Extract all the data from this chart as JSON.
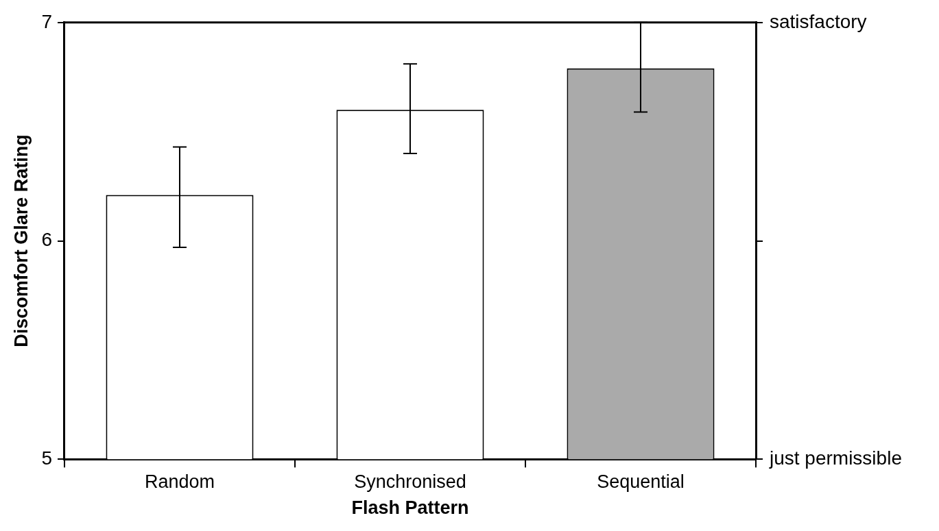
{
  "chart_data": {
    "type": "bar",
    "xlabel": "Flash Pattern",
    "ylabel": "Discomfort Glare Rating",
    "categories": [
      "Random",
      "Synchronised",
      "Sequential"
    ],
    "values": [
      6.21,
      6.6,
      6.79
    ],
    "colors": [
      "#ffffff",
      "#ffffff",
      "#aaaaaa"
    ],
    "errors": [
      [
        5.97,
        6.43
      ],
      [
        6.4,
        6.81
      ],
      [
        6.59,
        7.0
      ]
    ],
    "ylim": [
      5,
      7
    ],
    "yticks": [
      5,
      6,
      7
    ],
    "annotations": [
      "just permissible",
      "satisfactory"
    ],
    "grid": false,
    "legend": false
  }
}
